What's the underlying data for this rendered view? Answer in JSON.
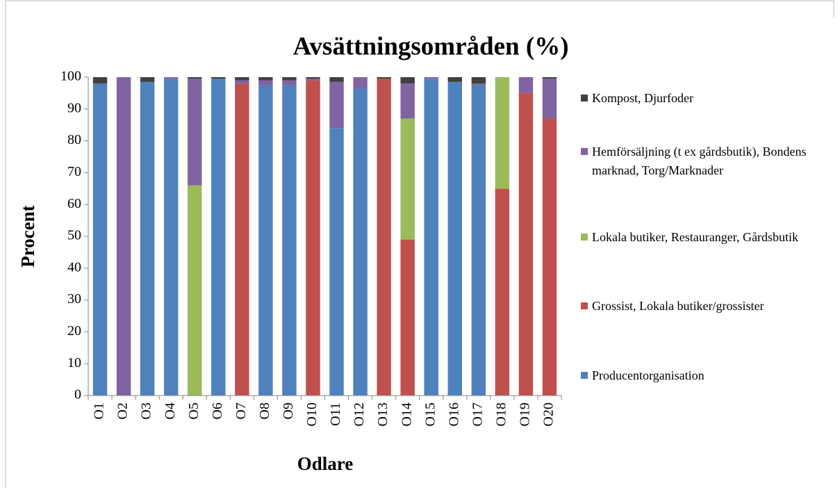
{
  "chart_data": {
    "type": "stacked_bar",
    "title": "Avsättningsområden (%)",
    "x_label": "Odlare",
    "y_label": "Procent",
    "categories": [
      "O1",
      "O2",
      "O3",
      "O4",
      "O5",
      "O6",
      "O7",
      "O8",
      "O9",
      "O10",
      "O11",
      "O12",
      "O13",
      "O14",
      "O15",
      "O16",
      "O17",
      "O18",
      "O19",
      "O20"
    ],
    "series": [
      {
        "name": "Producentorganisation",
        "color": "#4f81bd",
        "values": [
          98,
          0,
          98.5,
          99.5,
          0,
          99.5,
          0,
          97.5,
          97.5,
          0,
          84,
          96.5,
          0,
          0,
          99.5,
          98.5,
          97.5,
          0,
          0,
          0
        ]
      },
      {
        "name": "Grossist, Lokala butiker/grossister",
        "color": "#c0504d",
        "values": [
          0,
          0,
          0,
          0,
          0,
          0,
          98,
          0,
          0,
          99,
          0,
          0,
          99.5,
          49,
          0,
          0,
          0,
          65,
          95,
          87
        ]
      },
      {
        "name": "Lokala butiker, Restauranger, Gårdsbutik",
        "color": "#9bbb59",
        "values": [
          0,
          0,
          0,
          0,
          66,
          0,
          0,
          0,
          0,
          0,
          0,
          0,
          0,
          38,
          0,
          0,
          0,
          35,
          0,
          0
        ]
      },
      {
        "name": "Hemförsäljning (t ex gårdsbutik), Bondens marknad, Torg/Marknader",
        "color": "#8064a2",
        "values": [
          0,
          100,
          0,
          0.5,
          33.5,
          0,
          1,
          1.5,
          1.5,
          0.5,
          14.5,
          3.5,
          0,
          11,
          0.5,
          0,
          0.5,
          0,
          5,
          12.5
        ]
      },
      {
        "name": "Kompost, Djurfoder",
        "color": "#404040",
        "values": [
          2,
          0,
          1.5,
          0,
          0.5,
          0.5,
          1,
          1,
          1,
          0.5,
          1.5,
          0,
          0.5,
          2,
          0,
          1.5,
          2,
          0,
          0,
          0.5
        ]
      }
    ],
    "ylim": [
      0,
      100
    ],
    "yticks": [
      0,
      10,
      20,
      30,
      40,
      50,
      60,
      70,
      80,
      90,
      100
    ],
    "legend": "right"
  }
}
